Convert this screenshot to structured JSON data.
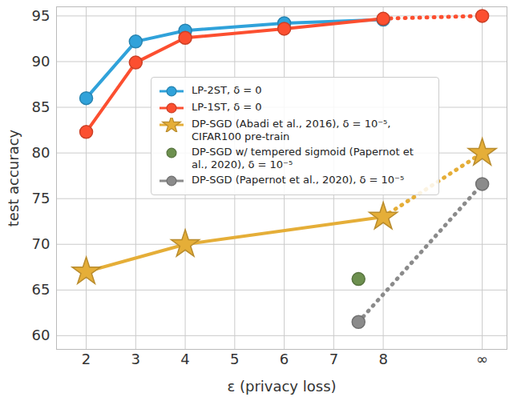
{
  "chart_data": {
    "type": "line",
    "x_label": "ε (privacy loss)",
    "y_label": "test accuracy",
    "xlim": [
      1.4,
      10.5
    ],
    "ylim": [
      58.5,
      96
    ],
    "xticks": [
      2,
      3,
      4,
      5,
      6,
      7,
      8,
      {
        "value": 10,
        "label": "∞"
      }
    ],
    "yticks": [
      60,
      65,
      70,
      75,
      80,
      85,
      90,
      95
    ],
    "grid": true,
    "legend": "top",
    "series": [
      {
        "name": "LP-2ST, δ = 0",
        "color": "#30a2da",
        "marker": "circle",
        "line_style": "solid",
        "x": [
          2,
          3,
          4,
          6,
          8
        ],
        "values": [
          86.0,
          92.2,
          93.4,
          94.2,
          94.6
        ]
      },
      {
        "name": "LP-1ST, δ = 0",
        "color": "#fc4f30",
        "marker": "circle",
        "line_style": "solid",
        "x": [
          2,
          3,
          4,
          6,
          8,
          10
        ],
        "values": [
          82.3,
          89.9,
          92.6,
          93.6,
          94.7,
          95.0
        ]
      },
      {
        "name": "DP-SGD (Abadi et al., 2016), δ = 10⁻⁵, CIFAR100 pre-train",
        "color": "#e5ae38",
        "marker": "star",
        "line_style": "solid",
        "x": [
          2,
          4,
          8,
          10
        ],
        "values": [
          67.0,
          70.0,
          73.0,
          80.0
        ]
      },
      {
        "name": "DP-SGD w/ tempered sigmoid (Papernot et al., 2020), δ = 10⁻⁵",
        "color": "#6d904f",
        "marker": "circle",
        "x": [
          7.5
        ],
        "values": [
          66.2
        ]
      },
      {
        "name": "DP-SGD (Papernot et al., 2020), δ = 10⁻⁵",
        "color": "#8b8b8b",
        "marker": "circle",
        "line_style": "dotted",
        "x": [
          7.5,
          10
        ],
        "values": [
          61.5,
          76.6
        ]
      }
    ]
  }
}
